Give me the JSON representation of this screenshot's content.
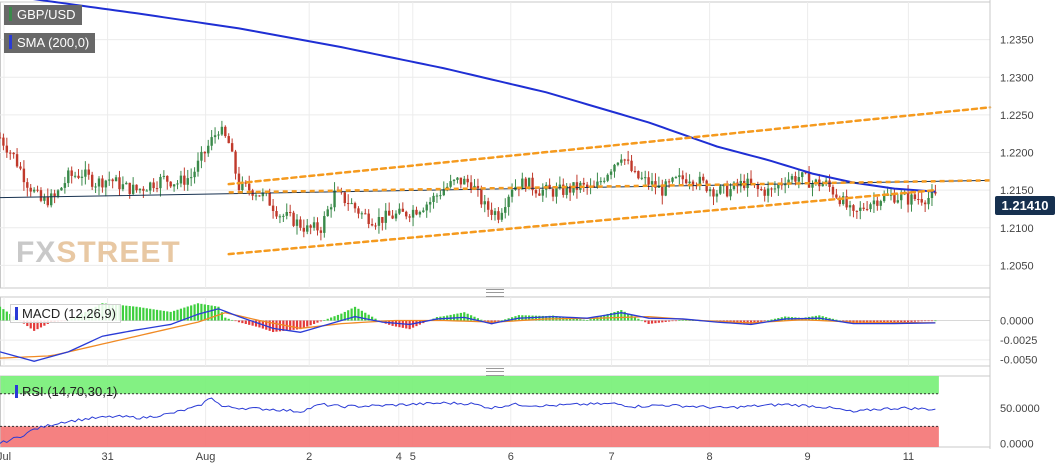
{
  "labels": {
    "symbol": "GBP/USD",
    "sma": "SMA (200,0)",
    "macd": "MACD (12,26,9)",
    "rsi": "RSI (14,70,30,1)",
    "watermark_fx": "FX",
    "watermark_street": "STREET",
    "last_price": "1.21410"
  },
  "colors": {
    "up": "#3a8a4a",
    "down": "#c0392b",
    "sma": "#1f2fd4",
    "channel": "#f59a1e",
    "rsi_overbought": "#7cf07c",
    "rsi_oversold": "#f47a7a",
    "price_tag": "#16304f"
  },
  "chart_data": [
    {
      "type": "candlestick",
      "title": "GBP/USD",
      "ylim": [
        1.202,
        1.24
      ],
      "yticks": [
        "1.2350",
        "1.2300",
        "1.2250",
        "1.2200",
        "1.2150",
        "1.2100",
        "1.2050"
      ],
      "ytick_values": [
        1.235,
        1.23,
        1.225,
        1.22,
        1.215,
        1.21,
        1.205
      ],
      "xticks": [
        "Jul",
        "31",
        "Aug",
        "2",
        "4",
        "5",
        "6",
        "7",
        "8",
        "9",
        "11"
      ],
      "last_price": 1.2141,
      "close_path": [
        [
          0,
          1.222
        ],
        [
          4,
          1.2195
        ],
        [
          8,
          1.216
        ],
        [
          12,
          1.2135
        ],
        [
          16,
          1.214
        ],
        [
          20,
          1.2168
        ],
        [
          24,
          1.2172
        ],
        [
          28,
          1.216
        ],
        [
          32,
          1.2165
        ],
        [
          36,
          1.2155
        ],
        [
          40,
          1.215
        ],
        [
          44,
          1.2158
        ],
        [
          48,
          1.2165
        ],
        [
          52,
          1.216
        ],
        [
          56,
          1.2168
        ],
        [
          60,
          1.22
        ],
        [
          64,
          1.2232
        ],
        [
          67,
          1.2212
        ],
        [
          70,
          1.2155
        ],
        [
          74,
          1.215
        ],
        [
          78,
          1.214
        ],
        [
          82,
          1.2118
        ],
        [
          86,
          1.211
        ],
        [
          90,
          1.2098
        ],
        [
          94,
          1.21
        ],
        [
          98,
          1.2145
        ],
        [
          102,
          1.2135
        ],
        [
          106,
          1.2118
        ],
        [
          110,
          1.211
        ],
        [
          114,
          1.2115
        ],
        [
          118,
          1.2118
        ],
        [
          122,
          1.2125
        ],
        [
          126,
          1.2135
        ],
        [
          130,
          1.2152
        ],
        [
          134,
          1.2162
        ],
        [
          138,
          1.216
        ],
        [
          142,
          1.2128
        ],
        [
          146,
          1.2118
        ],
        [
          150,
          1.2155
        ],
        [
          154,
          1.216
        ],
        [
          158,
          1.215
        ],
        [
          162,
          1.2148
        ],
        [
          166,
          1.215
        ],
        [
          170,
          1.2155
        ],
        [
          174,
          1.215
        ],
        [
          178,
          1.2175
        ],
        [
          182,
          1.2198
        ],
        [
          186,
          1.2168
        ],
        [
          190,
          1.216
        ],
        [
          194,
          1.215
        ],
        [
          198,
          1.2162
        ],
        [
          202,
          1.2168
        ],
        [
          206,
          1.2158
        ],
        [
          210,
          1.2148
        ],
        [
          214,
          1.215
        ],
        [
          218,
          1.216
        ],
        [
          222,
          1.215
        ],
        [
          226,
          1.2148
        ],
        [
          230,
          1.2165
        ],
        [
          234,
          1.2168
        ],
        [
          238,
          1.216
        ],
        [
          242,
          1.2158
        ],
        [
          246,
          1.214
        ],
        [
          250,
          1.2115
        ],
        [
          254,
          1.2132
        ],
        [
          258,
          1.214
        ],
        [
          262,
          1.2142
        ],
        [
          266,
          1.2138
        ],
        [
          270,
          1.214
        ],
        [
          274,
          1.214
        ]
      ],
      "sma_200": [
        [
          0,
          1.241
        ],
        [
          40,
          1.2385
        ],
        [
          70,
          1.2365
        ],
        [
          100,
          1.234
        ],
        [
          130,
          1.2312
        ],
        [
          160,
          1.228
        ],
        [
          190,
          1.224
        ],
        [
          210,
          1.2208
        ],
        [
          225,
          1.219
        ],
        [
          238,
          1.2172
        ],
        [
          250,
          1.216
        ],
        [
          262,
          1.2152
        ],
        [
          274,
          1.2148
        ]
      ],
      "channel_upper": [
        [
          67,
          1.2158
        ],
        [
          290,
          1.226
        ]
      ],
      "channel_middle": [
        [
          0,
          1.214
        ],
        [
          290,
          1.2163
        ]
      ],
      "channel_lower": [
        [
          67,
          1.2065
        ],
        [
          274,
          1.215
        ]
      ]
    },
    {
      "type": "line",
      "title": "MACD (12,26,9)",
      "ylim": [
        -0.0058,
        0.003
      ],
      "yticks": [
        "0.0000",
        "-0.0025",
        "-0.0050"
      ],
      "ytick_values": [
        0.0,
        -0.0025,
        -0.005
      ],
      "macd": [
        [
          0,
          -0.004
        ],
        [
          10,
          -0.0052
        ],
        [
          20,
          -0.004
        ],
        [
          30,
          -0.002
        ],
        [
          40,
          -0.0012
        ],
        [
          50,
          -0.0005
        ],
        [
          58,
          0.0008
        ],
        [
          64,
          0.0015
        ],
        [
          70,
          0.0005
        ],
        [
          80,
          -0.001
        ],
        [
          88,
          -0.0015
        ],
        [
          96,
          -0.0005
        ],
        [
          104,
          0.0005
        ],
        [
          112,
          -0.0002
        ],
        [
          120,
          -0.0005
        ],
        [
          128,
          0.0002
        ],
        [
          136,
          0.0004
        ],
        [
          144,
          -0.0004
        ],
        [
          152,
          0.0003
        ],
        [
          162,
          0.0005
        ],
        [
          172,
          0.0003
        ],
        [
          182,
          0.001
        ],
        [
          190,
          0.0003
        ],
        [
          200,
          0.0002
        ],
        [
          210,
          -0.0002
        ],
        [
          220,
          -0.0005
        ],
        [
          230,
          0.0002
        ],
        [
          240,
          0.0003
        ],
        [
          250,
          -0.0004
        ],
        [
          260,
          -0.0004
        ],
        [
          274,
          -0.0003
        ]
      ],
      "signal": [
        [
          0,
          -0.0048
        ],
        [
          15,
          -0.0045
        ],
        [
          30,
          -0.003
        ],
        [
          45,
          -0.0015
        ],
        [
          58,
          -0.0002
        ],
        [
          66,
          0.001
        ],
        [
          76,
          0.0
        ],
        [
          88,
          -0.001
        ],
        [
          100,
          -0.0004
        ],
        [
          115,
          0.0
        ],
        [
          130,
          0.0
        ],
        [
          145,
          -0.0002
        ],
        [
          160,
          0.0002
        ],
        [
          175,
          0.0003
        ],
        [
          190,
          0.0005
        ],
        [
          205,
          0.0
        ],
        [
          220,
          -0.0003
        ],
        [
          235,
          0.0001
        ],
        [
          250,
          -0.0002
        ],
        [
          274,
          -0.0003
        ]
      ]
    },
    {
      "type": "line",
      "title": "RSI (14,70,30,1)",
      "ylim": [
        -5,
        95
      ],
      "yticks": [
        "50.0000",
        "0.0000"
      ],
      "ytick_values": [
        50,
        0
      ],
      "overbought": 70,
      "oversold": 30,
      "rsi": [
        [
          0,
          0
        ],
        [
          6,
          10
        ],
        [
          10,
          20
        ],
        [
          18,
          30
        ],
        [
          26,
          35
        ],
        [
          34,
          38
        ],
        [
          42,
          36
        ],
        [
          50,
          42
        ],
        [
          58,
          52
        ],
        [
          62,
          65
        ],
        [
          65,
          52
        ],
        [
          70,
          50
        ],
        [
          80,
          48
        ],
        [
          88,
          45
        ],
        [
          94,
          55
        ],
        [
          100,
          52
        ],
        [
          110,
          53
        ],
        [
          120,
          55
        ],
        [
          130,
          57
        ],
        [
          138,
          56
        ],
        [
          144,
          50
        ],
        [
          150,
          55
        ],
        [
          160,
          53
        ],
        [
          170,
          55
        ],
        [
          180,
          56
        ],
        [
          186,
          52
        ],
        [
          194,
          54
        ],
        [
          204,
          52
        ],
        [
          212,
          50
        ],
        [
          222,
          53
        ],
        [
          230,
          55
        ],
        [
          240,
          52
        ],
        [
          246,
          48
        ],
        [
          250,
          44
        ],
        [
          256,
          48
        ],
        [
          264,
          50
        ],
        [
          274,
          48
        ]
      ]
    }
  ]
}
